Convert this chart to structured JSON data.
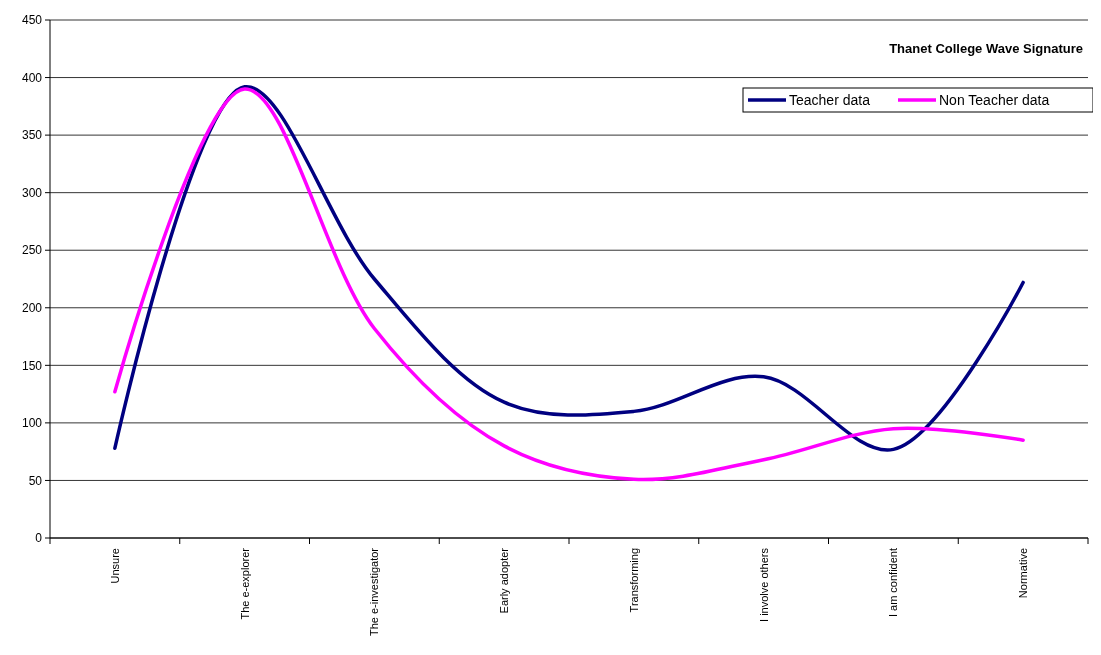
{
  "chart_data": {
    "type": "line",
    "title": "Thanet College Wave Signature",
    "categories": [
      "Unsure",
      "The e-explorer",
      "The e-investigator",
      "Early adopter",
      "Transforming",
      "I involve others",
      "I am confident",
      "Normative"
    ],
    "series": [
      {
        "name": "Teacher data",
        "color": "#000080",
        "values": [
          78,
          392,
          225,
          118,
          110,
          140,
          77,
          222
        ]
      },
      {
        "name": "Non Teacher data",
        "color": "#ff00ff",
        "values": [
          127,
          390,
          182,
          80,
          51,
          68,
          95,
          85
        ]
      }
    ],
    "ylim": [
      0,
      450
    ],
    "yticks": [
      0,
      50,
      100,
      150,
      200,
      250,
      300,
      350,
      400,
      450
    ],
    "grid": "y",
    "legend": "top right",
    "marker": "none",
    "line_style": "solid"
  }
}
